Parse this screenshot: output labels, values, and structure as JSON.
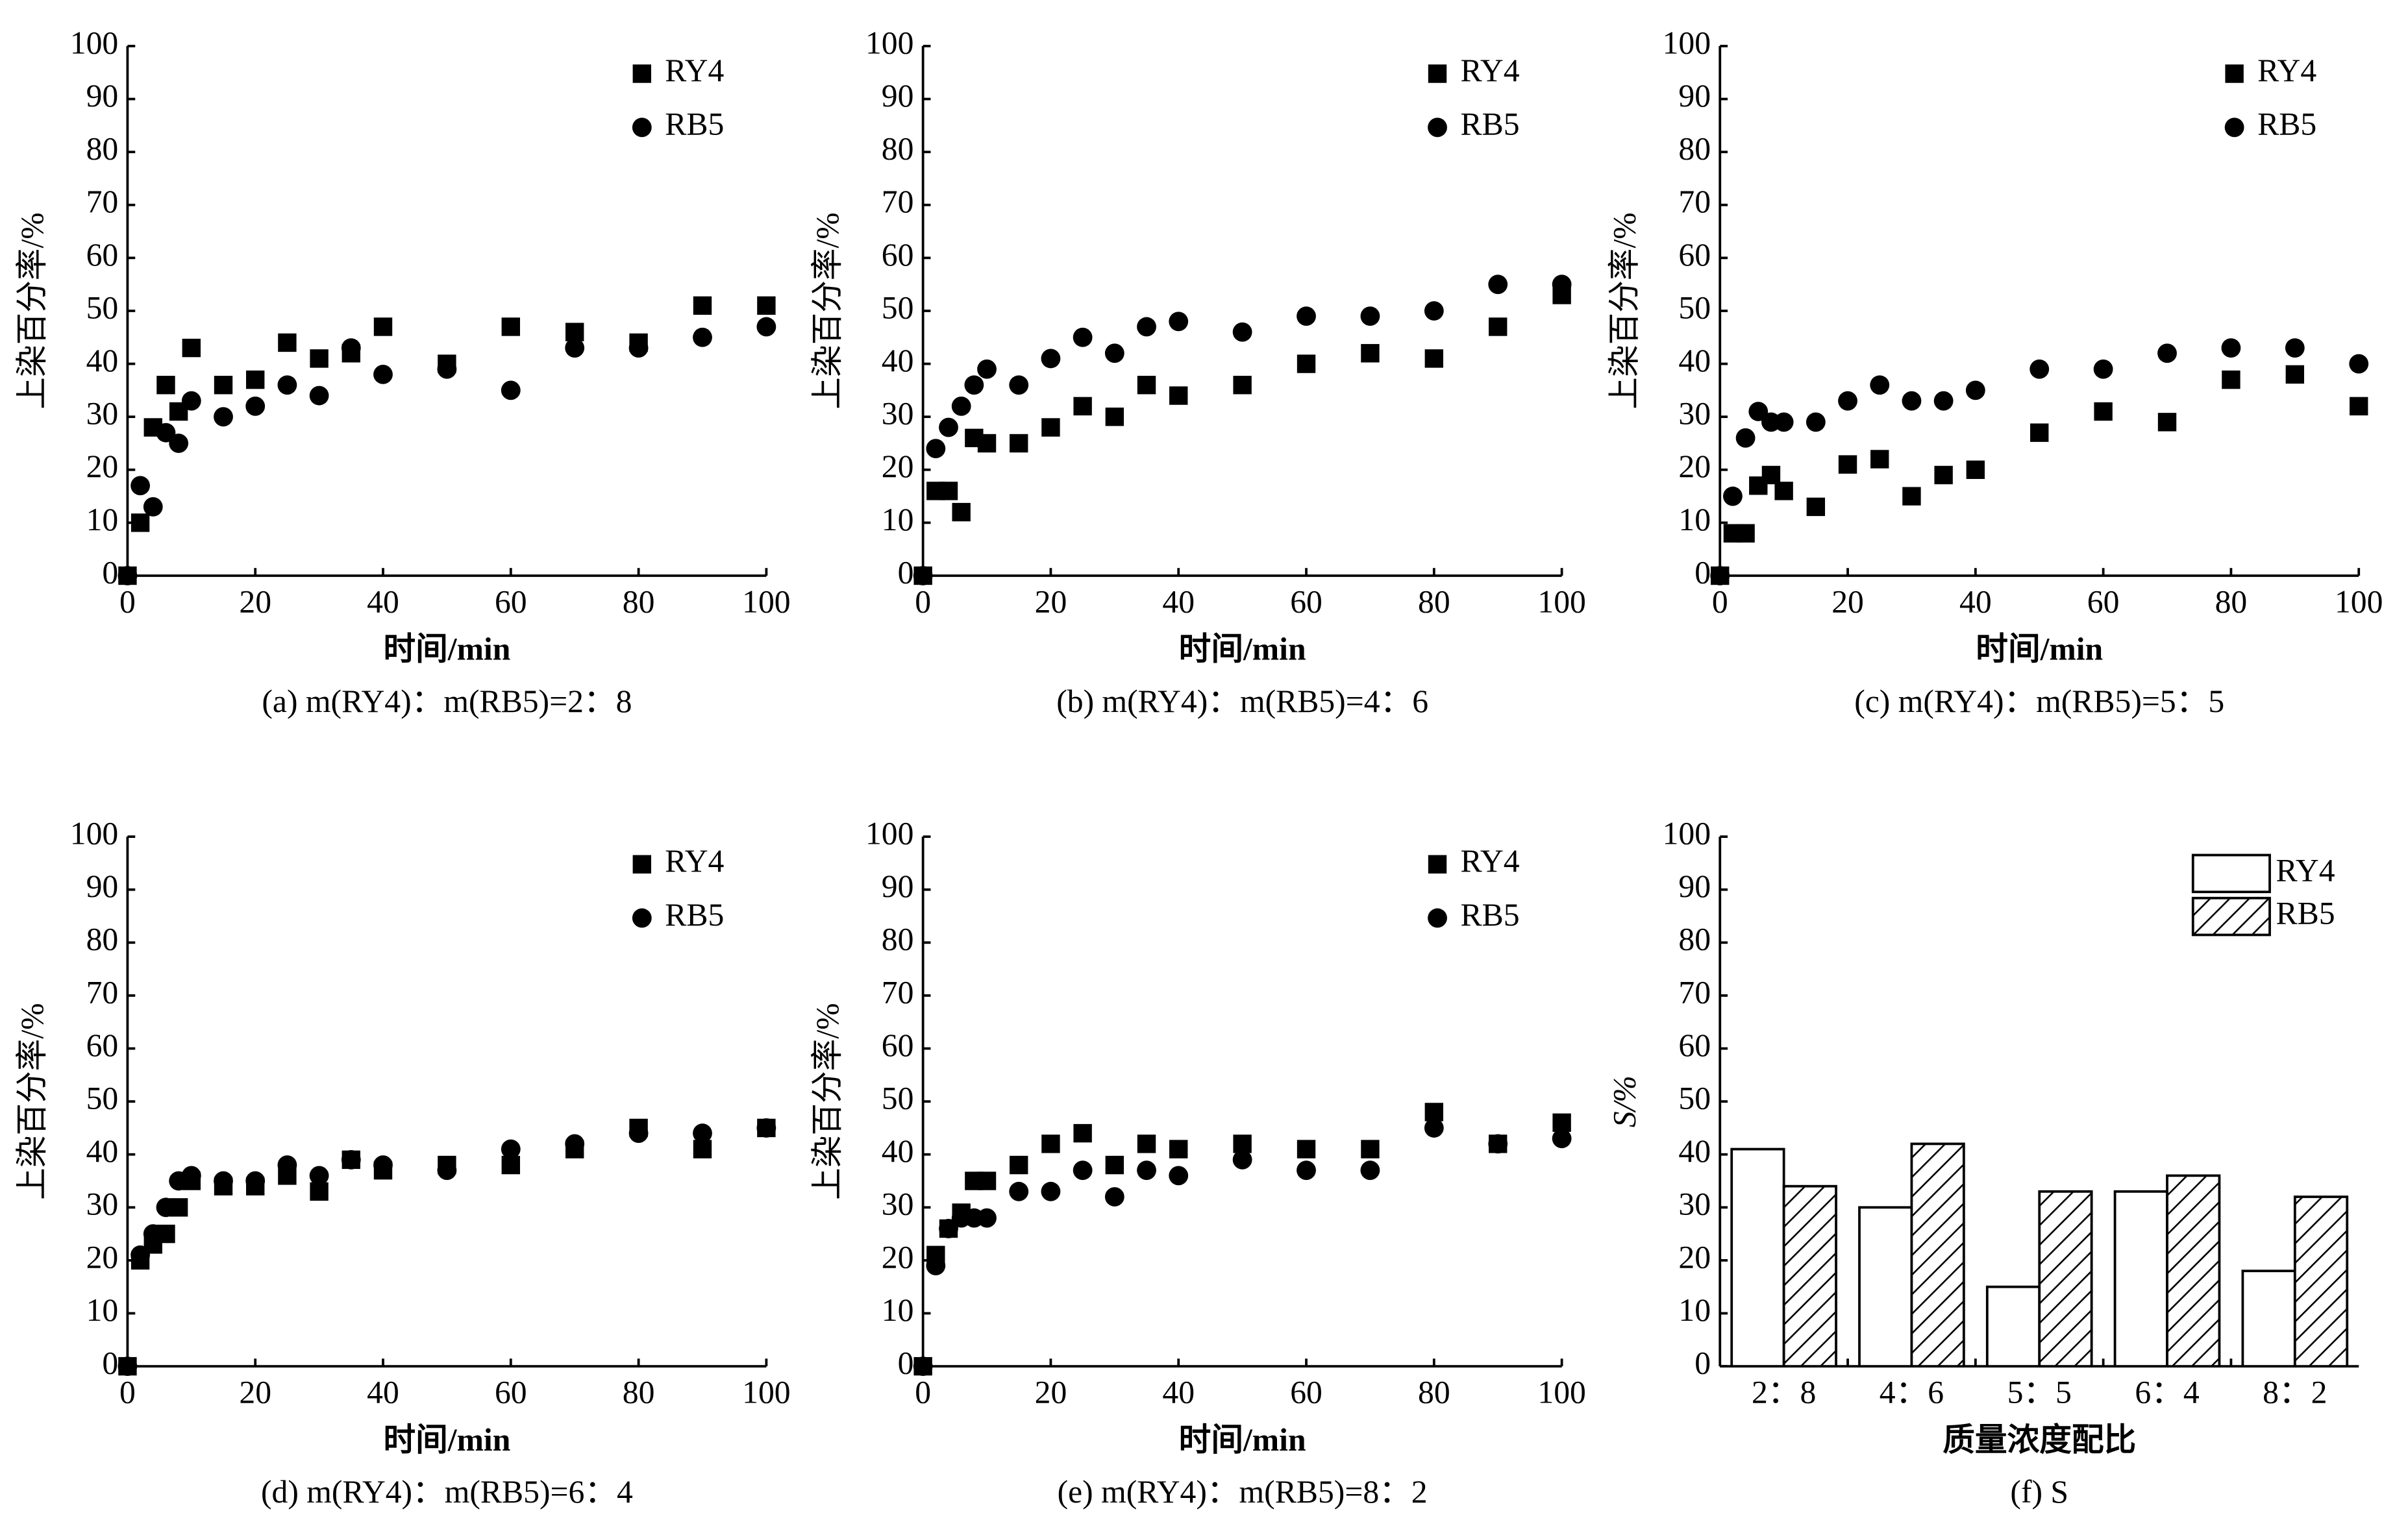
{
  "chart_data": [
    {
      "type": "scatter",
      "caption": "(a) m(RY4)：m(RB5)=2：8",
      "xlabel": "时间/min",
      "ylabel": "上染百分率/%",
      "x": [
        0,
        2,
        4,
        6,
        8,
        10,
        15,
        20,
        25,
        30,
        35,
        40,
        50,
        60,
        70,
        80,
        90,
        100
      ],
      "series": [
        {
          "name": "RY4",
          "marker": "square",
          "color": "#000000",
          "values": [
            0,
            10,
            28,
            36,
            31,
            43,
            36,
            37,
            44,
            41,
            42,
            47,
            40,
            47,
            46,
            44,
            51,
            51
          ]
        },
        {
          "name": "RB5",
          "marker": "circle",
          "color": "#000000",
          "values": [
            0,
            17,
            13,
            27,
            25,
            33,
            30,
            32,
            36,
            34,
            43,
            38,
            39,
            35,
            43,
            43,
            45,
            47
          ]
        }
      ],
      "xlim": [
        0,
        100
      ],
      "xticks": [
        0,
        20,
        40,
        60,
        80,
        100
      ],
      "ylim": [
        0,
        100
      ],
      "yticks": [
        0,
        10,
        20,
        30,
        40,
        50,
        60,
        70,
        80,
        90,
        100
      ],
      "legend": "upper right"
    },
    {
      "type": "scatter",
      "caption": "(b) m(RY4)：m(RB5)=4：6",
      "xlabel": "时间/min",
      "ylabel": "上染百分率/%",
      "x": [
        0,
        2,
        4,
        6,
        8,
        10,
        15,
        20,
        25,
        30,
        35,
        40,
        50,
        60,
        70,
        80,
        90,
        100
      ],
      "series": [
        {
          "name": "RY4",
          "marker": "square",
          "color": "#000000",
          "values": [
            0,
            16,
            16,
            12,
            26,
            25,
            25,
            28,
            32,
            30,
            36,
            34,
            36,
            40,
            42,
            41,
            47,
            53
          ]
        },
        {
          "name": "RB5",
          "marker": "circle",
          "color": "#000000",
          "values": [
            0,
            24,
            28,
            32,
            36,
            39,
            36,
            41,
            45,
            42,
            47,
            48,
            46,
            49,
            49,
            50,
            55,
            55
          ]
        }
      ],
      "xlim": [
        0,
        100
      ],
      "xticks": [
        0,
        20,
        40,
        60,
        80,
        100
      ],
      "ylim": [
        0,
        100
      ],
      "yticks": [
        0,
        10,
        20,
        30,
        40,
        50,
        60,
        70,
        80,
        90,
        100
      ],
      "legend": "upper right"
    },
    {
      "type": "scatter",
      "caption": "(c) m(RY4)：m(RB5)=5：5",
      "xlabel": "时间/min",
      "ylabel": "上染百分率/%",
      "x": [
        0,
        2,
        4,
        6,
        8,
        10,
        15,
        20,
        25,
        30,
        35,
        40,
        50,
        60,
        70,
        80,
        90,
        100
      ],
      "series": [
        {
          "name": "RY4",
          "marker": "square",
          "color": "#000000",
          "values": [
            0,
            8,
            8,
            17,
            19,
            16,
            13,
            21,
            22,
            15,
            19,
            20,
            27,
            31,
            29,
            37,
            38,
            32
          ]
        },
        {
          "name": "RB5",
          "marker": "circle",
          "color": "#000000",
          "values": [
            0,
            15,
            26,
            31,
            29,
            29,
            29,
            33,
            36,
            33,
            33,
            35,
            39,
            39,
            42,
            43,
            43,
            40
          ]
        }
      ],
      "xlim": [
        0,
        100
      ],
      "xticks": [
        0,
        20,
        40,
        60,
        80,
        100
      ],
      "ylim": [
        0,
        100
      ],
      "yticks": [
        0,
        10,
        20,
        30,
        40,
        50,
        60,
        70,
        80,
        90,
        100
      ],
      "legend": "upper right"
    },
    {
      "type": "scatter",
      "caption": "(d) m(RY4)：m(RB5)=6：4",
      "xlabel": "时间/min",
      "ylabel": "上染百分率/%",
      "x": [
        0,
        2,
        4,
        6,
        8,
        10,
        15,
        20,
        25,
        30,
        35,
        40,
        50,
        60,
        70,
        80,
        90,
        100
      ],
      "series": [
        {
          "name": "RY4",
          "marker": "square",
          "color": "#000000",
          "values": [
            0,
            20,
            23,
            25,
            30,
            35,
            34,
            34,
            36,
            33,
            39,
            37,
            38,
            38,
            41,
            45,
            41,
            45
          ]
        },
        {
          "name": "RB5",
          "marker": "circle",
          "color": "#000000",
          "values": [
            0,
            21,
            25,
            30,
            35,
            36,
            35,
            35,
            38,
            36,
            39,
            38,
            37,
            41,
            42,
            44,
            44,
            45
          ]
        }
      ],
      "xlim": [
        0,
        100
      ],
      "xticks": [
        0,
        20,
        40,
        60,
        80,
        100
      ],
      "ylim": [
        0,
        100
      ],
      "yticks": [
        0,
        10,
        20,
        30,
        40,
        50,
        60,
        70,
        80,
        90,
        100
      ],
      "legend": "upper right"
    },
    {
      "type": "scatter",
      "caption": "(e) m(RY4)：m(RB5)=8：2",
      "xlabel": "时间/min",
      "ylabel": "上染百分率/%",
      "x": [
        0,
        2,
        4,
        6,
        8,
        10,
        15,
        20,
        25,
        30,
        35,
        40,
        50,
        60,
        70,
        80,
        90,
        100
      ],
      "series": [
        {
          "name": "RY4",
          "marker": "square",
          "color": "#000000",
          "values": [
            0,
            21,
            26,
            29,
            35,
            35,
            38,
            42,
            44,
            38,
            42,
            41,
            42,
            41,
            41,
            48,
            42,
            46
          ]
        },
        {
          "name": "RB5",
          "marker": "circle",
          "color": "#000000",
          "values": [
            0,
            19,
            26,
            28,
            28,
            28,
            33,
            33,
            37,
            32,
            37,
            36,
            39,
            37,
            37,
            45,
            42,
            43
          ]
        }
      ],
      "xlim": [
        0,
        100
      ],
      "xticks": [
        0,
        20,
        40,
        60,
        80,
        100
      ],
      "ylim": [
        0,
        100
      ],
      "yticks": [
        0,
        10,
        20,
        30,
        40,
        50,
        60,
        70,
        80,
        90,
        100
      ],
      "legend": "upper right"
    },
    {
      "type": "bar",
      "caption": "(f) S",
      "xlabel": "质量浓度配比",
      "ylabel": "S/%",
      "categories": [
        "2：8",
        "4：6",
        "5：5",
        "6：4",
        "8：2"
      ],
      "series": [
        {
          "name": "RY4",
          "color": "#ffffff",
          "hatch": false,
          "values": [
            41,
            30,
            15,
            33,
            18
          ]
        },
        {
          "name": "RB5",
          "color": "#ffffff",
          "hatch": true,
          "values": [
            34,
            42,
            33,
            36,
            32
          ]
        }
      ],
      "ylim": [
        0,
        100
      ],
      "yticks": [
        0,
        10,
        20,
        30,
        40,
        50,
        60,
        70,
        80,
        90,
        100
      ],
      "legend": "upper right"
    }
  ]
}
